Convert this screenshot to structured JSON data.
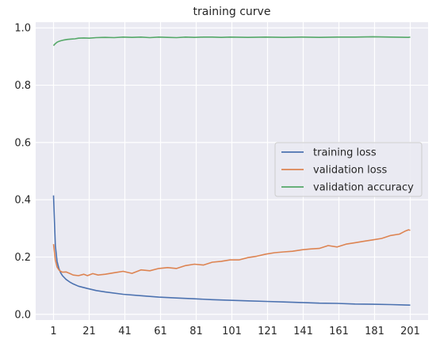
{
  "chart_data": {
    "type": "line",
    "title": "training curve",
    "xlabel": "",
    "ylabel": "",
    "xlim": [
      -9,
      211
    ],
    "ylim": [
      -0.02,
      1.02
    ],
    "xticks": [
      1,
      21,
      41,
      61,
      81,
      101,
      121,
      141,
      161,
      181,
      201
    ],
    "yticks": [
      0.0,
      0.2,
      0.4,
      0.6,
      0.8,
      1.0
    ],
    "grid": true,
    "legend_position": "center-right",
    "series": [
      {
        "name": "training loss",
        "color": "#4c72b0",
        "x": [
          1,
          2,
          3,
          4,
          5,
          6,
          8,
          10,
          12,
          15,
          20,
          25,
          30,
          40,
          50,
          60,
          70,
          80,
          90,
          100,
          110,
          120,
          130,
          140,
          150,
          160,
          170,
          180,
          190,
          201
        ],
        "y": [
          0.415,
          0.24,
          0.185,
          0.16,
          0.145,
          0.135,
          0.122,
          0.113,
          0.106,
          0.098,
          0.09,
          0.083,
          0.078,
          0.07,
          0.065,
          0.06,
          0.057,
          0.054,
          0.051,
          0.049,
          0.047,
          0.045,
          0.043,
          0.041,
          0.039,
          0.038,
          0.036,
          0.035,
          0.034,
          0.032
        ]
      },
      {
        "name": "validation loss",
        "color": "#dd8452",
        "x": [
          1,
          2,
          3,
          4,
          5,
          6,
          8,
          10,
          12,
          15,
          18,
          20,
          23,
          26,
          30,
          35,
          40,
          45,
          50,
          55,
          60,
          65,
          70,
          75,
          80,
          85,
          90,
          95,
          100,
          105,
          110,
          115,
          120,
          125,
          130,
          135,
          140,
          145,
          150,
          155,
          160,
          165,
          170,
          175,
          180,
          185,
          190,
          195,
          198,
          200,
          201
        ],
        "y": [
          0.245,
          0.19,
          0.165,
          0.155,
          0.15,
          0.147,
          0.148,
          0.143,
          0.137,
          0.135,
          0.14,
          0.135,
          0.142,
          0.137,
          0.14,
          0.145,
          0.15,
          0.143,
          0.155,
          0.152,
          0.16,
          0.163,
          0.16,
          0.17,
          0.175,
          0.172,
          0.182,
          0.185,
          0.19,
          0.19,
          0.198,
          0.203,
          0.21,
          0.215,
          0.218,
          0.22,
          0.225,
          0.228,
          0.23,
          0.24,
          0.235,
          0.245,
          0.25,
          0.255,
          0.26,
          0.265,
          0.275,
          0.28,
          0.29,
          0.295,
          0.293
        ]
      },
      {
        "name": "validation accuracy",
        "color": "#55a868",
        "x": [
          1,
          2,
          3,
          4,
          5,
          7,
          9,
          11,
          13,
          15,
          18,
          21,
          25,
          30,
          35,
          40,
          45,
          50,
          55,
          60,
          65,
          70,
          75,
          80,
          85,
          90,
          95,
          100,
          110,
          120,
          130,
          140,
          150,
          160,
          170,
          180,
          190,
          200,
          201
        ],
        "y": [
          0.938,
          0.945,
          0.95,
          0.953,
          0.955,
          0.958,
          0.96,
          0.961,
          0.962,
          0.964,
          0.965,
          0.964,
          0.966,
          0.967,
          0.966,
          0.968,
          0.967,
          0.968,
          0.966,
          0.968,
          0.967,
          0.966,
          0.968,
          0.967,
          0.968,
          0.968,
          0.967,
          0.968,
          0.967,
          0.968,
          0.967,
          0.968,
          0.967,
          0.968,
          0.968,
          0.969,
          0.968,
          0.967,
          0.968
        ]
      }
    ]
  }
}
